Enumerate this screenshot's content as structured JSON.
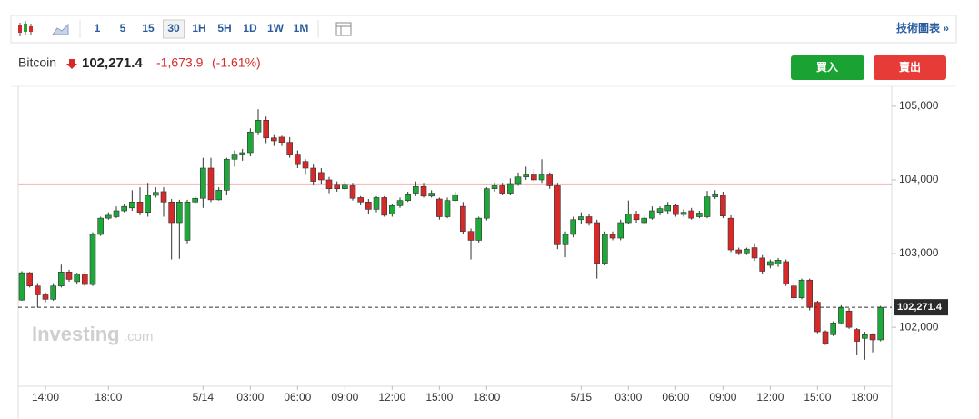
{
  "toolbar": {
    "intervals": [
      "1",
      "5",
      "15",
      "30",
      "1H",
      "5H",
      "1D",
      "1W",
      "1M"
    ],
    "selected_index": 3,
    "link": "技術圖表 »"
  },
  "header": {
    "name": "Bitcoin",
    "price": "102,271.4",
    "change": "-1,673.9",
    "change_pct": "(-1.61%)"
  },
  "buttons": {
    "buy": "買入",
    "sell": "賣出"
  },
  "watermark": {
    "brand": "Investing",
    "suffix": ".com"
  },
  "chart_data": {
    "type": "candlestick",
    "categories": [
      null,
      null,
      null,
      "14:00",
      null,
      null,
      null,
      null,
      null,
      null,
      null,
      "18:00",
      null,
      null,
      null,
      null,
      null,
      null,
      null,
      null,
      null,
      null,
      null,
      "5/14",
      null,
      null,
      null,
      null,
      null,
      "03:00",
      null,
      null,
      null,
      null,
      null,
      "06:00",
      null,
      null,
      null,
      null,
      null,
      "09:00",
      null,
      null,
      null,
      null,
      null,
      "12:00",
      null,
      null,
      null,
      null,
      null,
      "15:00",
      null,
      null,
      null,
      null,
      null,
      "18:00",
      null,
      null,
      null,
      null,
      null,
      null,
      null,
      null,
      null,
      null,
      null,
      "5/15",
      null,
      null,
      null,
      null,
      null,
      "03:00",
      null,
      null,
      null,
      null,
      null,
      "06:00",
      null,
      null,
      null,
      null,
      null,
      "09:00",
      null,
      null,
      null,
      null,
      null,
      "12:00",
      null,
      null,
      null,
      null,
      null,
      "15:00",
      null,
      null,
      null,
      null,
      null,
      "18:00",
      null,
      null
    ],
    "open": [
      102370,
      102740,
      102560,
      102440,
      102380,
      102560,
      102750,
      102620,
      102720,
      102580,
      103260,
      103480,
      103500,
      103580,
      103620,
      103700,
      103560,
      103790,
      103840,
      103700,
      103420,
      103180,
      103700,
      103750,
      104160,
      103730,
      103860,
      104280,
      104350,
      104370,
      104650,
      104810,
      104570,
      104580,
      104510,
      104350,
      104250,
      104160,
      104100,
      104000,
      103940,
      103880,
      103920,
      103760,
      103700,
      103600,
      103760,
      103540,
      103650,
      103720,
      103820,
      103910,
      103780,
      103740,
      103500,
      103720,
      103640,
      103300,
      103180,
      103480,
      103880,
      103920,
      103820,
      103950,
      104040,
      104080,
      104000,
      104080,
      103920,
      103120,
      103260,
      103460,
      103500,
      103420,
      102870,
      103260,
      103210,
      103420,
      103540,
      103420,
      103480,
      103560,
      103580,
      103650,
      103530,
      103580,
      103500,
      103500,
      103770,
      103790,
      103480,
      103050,
      103010,
      103080,
      102940,
      102840,
      102860,
      102890,
      102560,
      102400,
      102640,
      102340,
      101940,
      101900,
      102060,
      102220,
      101970,
      101850,
      101900,
      101830
    ],
    "high": [
      102760,
      102750,
      102600,
      102470,
      102600,
      102850,
      102780,
      102740,
      102760,
      103290,
      103500,
      103560,
      103640,
      103680,
      103860,
      103900,
      103960,
      103900,
      103900,
      103740,
      103730,
      103730,
      103780,
      104300,
      104300,
      103900,
      104300,
      104400,
      104420,
      104700,
      104960,
      104860,
      104620,
      104600,
      104580,
      104400,
      104280,
      104220,
      104160,
      104040,
      103980,
      103980,
      103960,
      103780,
      103740,
      103780,
      103780,
      103680,
      103760,
      103840,
      103980,
      103960,
      103860,
      103760,
      103760,
      103840,
      103700,
      103340,
      103500,
      103900,
      103960,
      103960,
      104020,
      104100,
      104180,
      104150,
      104280,
      104100,
      103960,
      103300,
      103500,
      103560,
      103540,
      103460,
      103300,
      103300,
      103460,
      103720,
      103580,
      103520,
      103640,
      103640,
      103700,
      103680,
      103600,
      103620,
      103580,
      103850,
      103860,
      103840,
      103520,
      103080,
      103080,
      103140,
      102980,
      102920,
      102940,
      102920,
      102600,
      102660,
      102660,
      102360,
      101960,
      102080,
      102300,
      102260,
      101990,
      101940,
      101920,
      102290
    ],
    "low": [
      102360,
      102540,
      102270,
      102340,
      102360,
      102540,
      102620,
      102580,
      102550,
      102560,
      103240,
      103460,
      103480,
      103560,
      103580,
      103520,
      103500,
      103760,
      103500,
      102920,
      102930,
      103140,
      103680,
      103620,
      103700,
      103720,
      103800,
      104180,
      104260,
      104320,
      104620,
      104500,
      104460,
      104460,
      104300,
      104160,
      104080,
      103940,
      103950,
      103820,
      103840,
      103860,
      103720,
      103660,
      103540,
      103560,
      103500,
      103500,
      103620,
      103700,
      103780,
      103760,
      103760,
      103460,
      103480,
      103700,
      103260,
      102920,
      103150,
      103450,
      103840,
      103800,
      103800,
      103920,
      104000,
      103970,
      103960,
      103880,
      103060,
      102950,
      103220,
      103400,
      103380,
      102660,
      102840,
      103180,
      103180,
      103400,
      103420,
      103400,
      103460,
      103520,
      103540,
      103500,
      103500,
      103460,
      103480,
      103480,
      103740,
      103480,
      103020,
      102980,
      102980,
      102900,
      102720,
      102800,
      102820,
      102560,
      102370,
      102380,
      102230,
      101920,
      101760,
      101880,
      102040,
      101980,
      101620,
      101560,
      101660,
      101810
    ],
    "close": [
      102740,
      102560,
      102440,
      102380,
      102560,
      102750,
      102650,
      102720,
      102580,
      103260,
      103480,
      103520,
      103580,
      103640,
      103700,
      103560,
      103790,
      103830,
      103700,
      103420,
      103700,
      103700,
      103750,
      104160,
      103730,
      103860,
      104280,
      104350,
      104370,
      104650,
      104810,
      104570,
      104530,
      104510,
      104350,
      104220,
      104160,
      103980,
      104000,
      103880,
      103880,
      103940,
      103750,
      103700,
      103600,
      103760,
      103520,
      103650,
      103720,
      103810,
      103910,
      103780,
      103820,
      103500,
      103720,
      103800,
      103300,
      103180,
      103480,
      103880,
      103920,
      103820,
      103950,
      104040,
      104080,
      104000,
      104080,
      103920,
      103120,
      103260,
      103460,
      103500,
      103420,
      102870,
      103260,
      103210,
      103420,
      103540,
      103460,
      103480,
      103580,
      103610,
      103650,
      103530,
      103560,
      103480,
      103550,
      103770,
      103810,
      103510,
      103050,
      103010,
      103060,
      102940,
      102760,
      102890,
      102910,
      102590,
      102400,
      102640,
      102270,
      101940,
      101780,
      102060,
      102270,
      102000,
      101810,
      101900,
      101830,
      102271.4
    ],
    "up_color": "#1fa83a",
    "down_color": "#d62a2a",
    "reference_line": 103945.3,
    "reference_color": "#f2b4b4",
    "last_price_label": "102,271.4",
    "ylim": [
      101200,
      105270
    ],
    "yticks": [
      {
        "value": 102000,
        "label": "102,000"
      },
      {
        "value": 103000,
        "label": "103,000"
      },
      {
        "value": 104000,
        "label": "104,000"
      },
      {
        "value": 105000,
        "label": "105,000"
      }
    ],
    "grid": false
  }
}
